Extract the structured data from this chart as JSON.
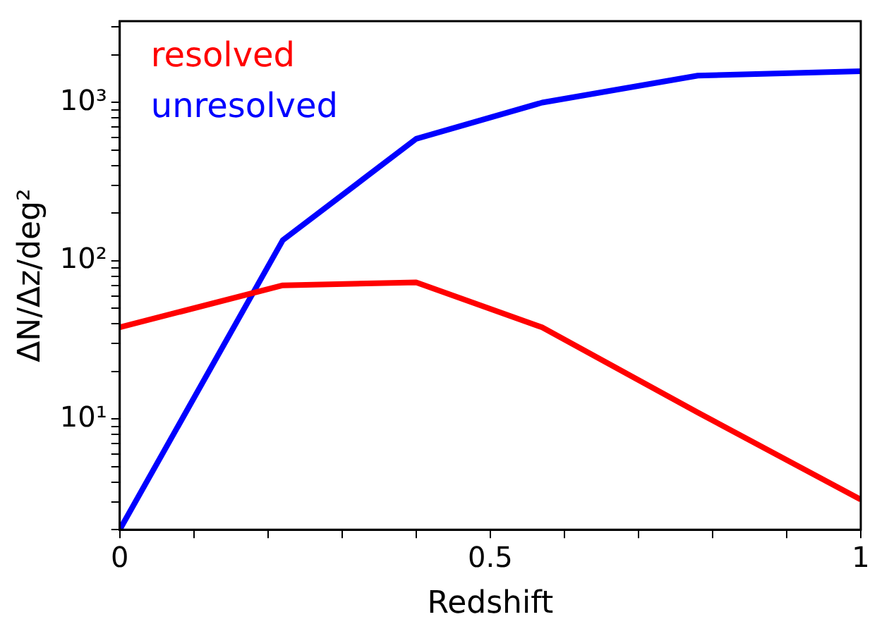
{
  "chart_data": {
    "type": "line",
    "xlabel": "Redshift",
    "ylabel": "ΔN/Δz/deg²",
    "x": [
      0,
      0.22,
      0.4,
      0.57,
      0.78,
      1
    ],
    "series": [
      {
        "name": "resolved",
        "color": "#ff0000",
        "values": [
          38,
          70,
          73,
          38,
          11,
          3.1
        ]
      },
      {
        "name": "unresolved",
        "color": "#0000ff",
        "values": [
          2.0,
          135,
          590,
          1000,
          1480,
          1580
        ]
      }
    ],
    "log": "y",
    "grid": false,
    "legend": "top left",
    "marker": "none",
    "line_style": "solid",
    "xlim": [
      0,
      1
    ],
    "xticks": [
      0,
      {
        "value": 0.1,
        "label": null
      },
      {
        "value": 0.2,
        "label": null
      },
      {
        "value": 0.3,
        "label": null
      },
      {
        "value": 0.4,
        "label": null
      },
      0.5,
      {
        "value": 0.6,
        "label": null
      },
      {
        "value": 0.7,
        "label": null
      },
      {
        "value": 0.8,
        "label": null
      },
      {
        "value": 0.9,
        "label": null
      },
      1
    ],
    "ylim": [
      2,
      3270
    ],
    "yticks": [
      {
        "value": 2,
        "label": null
      },
      {
        "value": 3,
        "label": null
      },
      {
        "value": 4,
        "label": null
      },
      {
        "value": 5,
        "label": null
      },
      {
        "value": 6,
        "label": null
      },
      {
        "value": 7,
        "label": null
      },
      {
        "value": 8,
        "label": null
      },
      {
        "value": 9,
        "label": null
      },
      {
        "value": 10,
        "label": "10¹"
      },
      {
        "value": 20,
        "label": null
      },
      {
        "value": 30,
        "label": null
      },
      {
        "value": 40,
        "label": null
      },
      {
        "value": 50,
        "label": null
      },
      {
        "value": 60,
        "label": null
      },
      {
        "value": 70,
        "label": null
      },
      {
        "value": 80,
        "label": null
      },
      {
        "value": 90,
        "label": null
      },
      {
        "value": 100,
        "label": "10²"
      },
      {
        "value": 200,
        "label": null
      },
      {
        "value": 300,
        "label": null
      },
      {
        "value": 400,
        "label": null
      },
      {
        "value": 500,
        "label": null
      },
      {
        "value": 600,
        "label": null
      },
      {
        "value": 700,
        "label": null
      },
      {
        "value": 800,
        "label": null
      },
      {
        "value": 900,
        "label": null
      },
      {
        "value": 1000,
        "label": "10³"
      },
      {
        "value": 2000,
        "label": null
      },
      {
        "value": 3000,
        "label": null
      }
    ]
  }
}
